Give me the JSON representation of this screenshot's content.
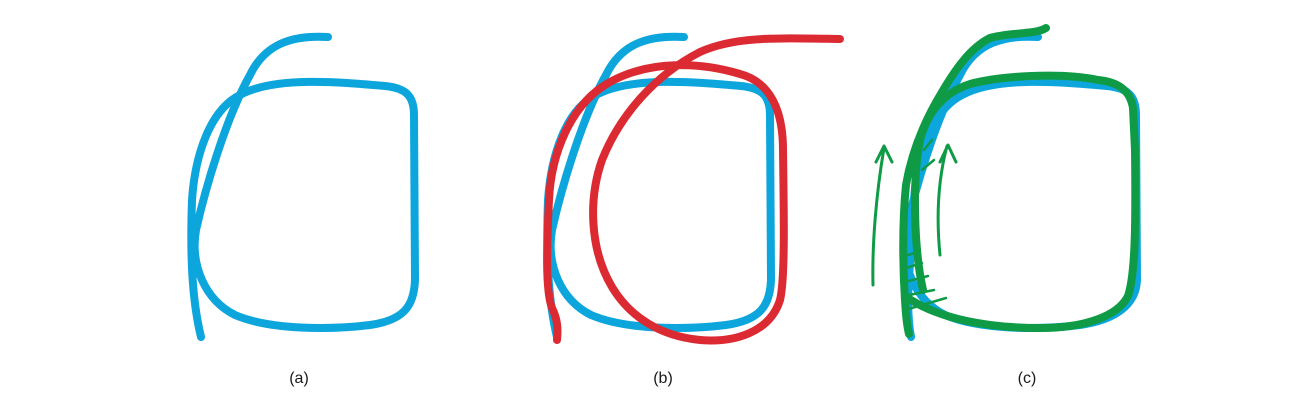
{
  "colors": {
    "blue": "#0ca6dc",
    "red": "#dc2a33",
    "green": "#0f9b45"
  },
  "panels": [
    {
      "id": "a",
      "caption": "(a)"
    },
    {
      "id": "b",
      "caption": "(b)"
    },
    {
      "id": "c",
      "caption": "(c)"
    }
  ]
}
